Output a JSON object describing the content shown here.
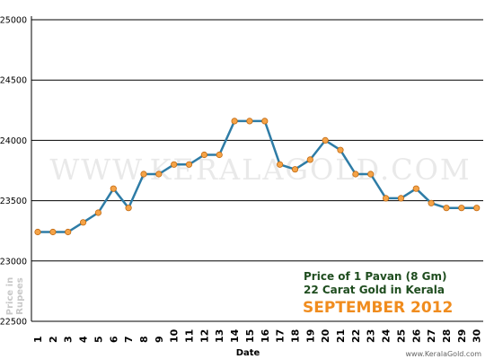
{
  "chart_data": {
    "type": "line",
    "title": "",
    "xlabel": "Date",
    "ylabel": "Price in Rupees",
    "categories": [
      "1",
      "2",
      "3",
      "4",
      "5",
      "6",
      "7",
      "8",
      "9",
      "10",
      "11",
      "12",
      "13",
      "14",
      "15",
      "16",
      "17",
      "18",
      "19",
      "20",
      "21",
      "22",
      "23",
      "24",
      "25",
      "26",
      "27",
      "28",
      "29",
      "30"
    ],
    "values": [
      23240,
      23240,
      23240,
      23320,
      23400,
      23600,
      23440,
      23720,
      23720,
      23800,
      23800,
      23880,
      23880,
      24160,
      24160,
      24160,
      23800,
      23760,
      23840,
      24000,
      23920,
      23720,
      23720,
      23520,
      23520,
      23600,
      23480,
      23440,
      23440,
      23440
    ],
    "ylim": [
      22500,
      25000
    ],
    "yticks": [
      22500,
      23000,
      23500,
      24000,
      24500,
      25000
    ],
    "grid": true,
    "colors": {
      "line": "#2e7ca6",
      "marker": "#f5a347",
      "grid": "#000000"
    }
  },
  "info": {
    "line1": "Price of 1 Pavan (8 Gm)",
    "line2": "22 Carat Gold in Kerala",
    "month": "SEPTEMBER 2012"
  },
  "watermark": "WWW.KERALAGOLD.COM",
  "footer": "www.KeralaGold.com"
}
